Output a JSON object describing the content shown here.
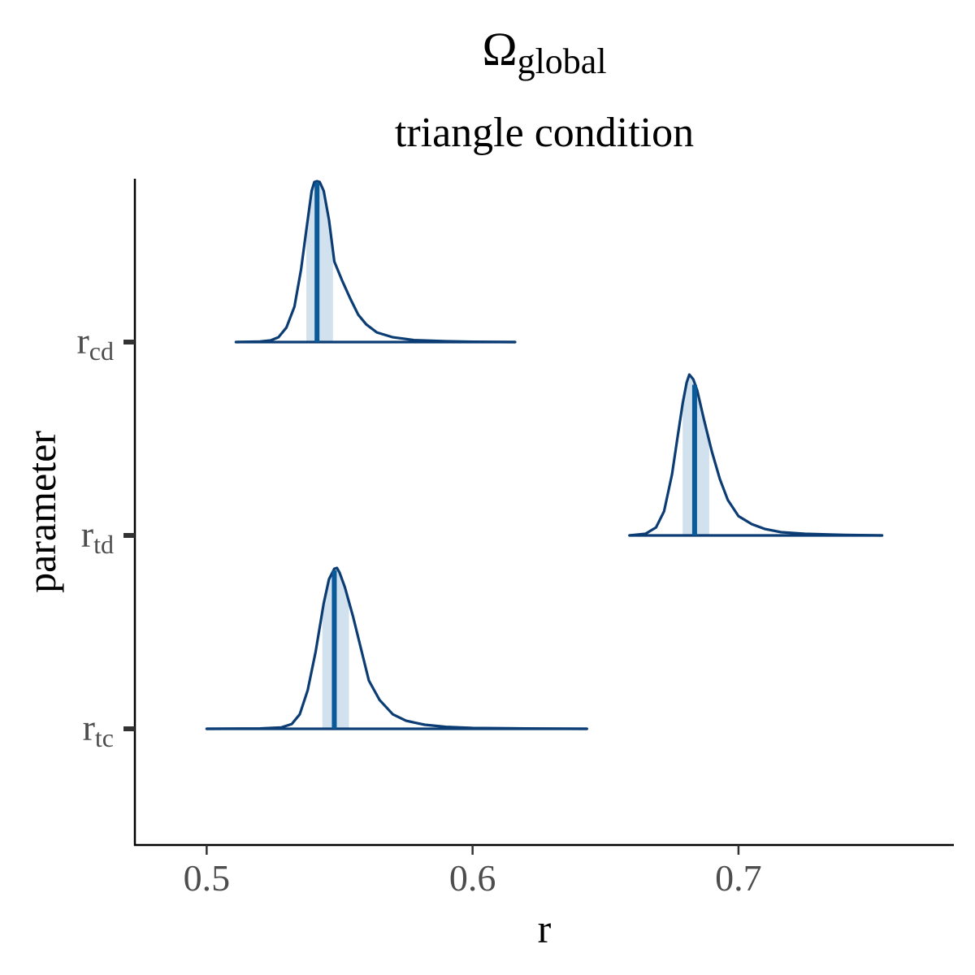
{
  "chart_data": {
    "type": "area",
    "title_main": "Ω",
    "title_sub": "global",
    "subtitle": "triangle condition",
    "xlabel": "r",
    "ylabel": "parameter",
    "xlim": [
      0.473,
      0.781
    ],
    "xticks": [
      0.5,
      0.6,
      0.7
    ],
    "xtick_labels": [
      "0.5",
      "0.6",
      "0.7"
    ],
    "grid": false,
    "line_color": "#0b3c73",
    "median_color": "#0a5a99",
    "interval_fill": "#d2e1ee",
    "series": [
      {
        "base": "r",
        "sub": "cd",
        "range": [
          0.511,
          0.616
        ],
        "median": 0.5415,
        "interval": [
          0.5375,
          0.5475
        ],
        "density": [
          [
            0.511,
            0
          ],
          [
            0.52,
            0.003
          ],
          [
            0.524,
            0.01
          ],
          [
            0.527,
            0.03
          ],
          [
            0.53,
            0.09
          ],
          [
            0.533,
            0.22
          ],
          [
            0.5355,
            0.45
          ],
          [
            0.5375,
            0.7
          ],
          [
            0.5395,
            0.94
          ],
          [
            0.5405,
            0.995
          ],
          [
            0.5415,
            1.0
          ],
          [
            0.5425,
            0.995
          ],
          [
            0.544,
            0.94
          ],
          [
            0.546,
            0.76
          ],
          [
            0.548,
            0.5
          ],
          [
            0.551,
            0.38
          ],
          [
            0.554,
            0.27
          ],
          [
            0.557,
            0.17
          ],
          [
            0.56,
            0.11
          ],
          [
            0.564,
            0.06
          ],
          [
            0.57,
            0.03
          ],
          [
            0.578,
            0.012
          ],
          [
            0.59,
            0.005
          ],
          [
            0.6,
            0.002
          ],
          [
            0.616,
            0
          ]
        ]
      },
      {
        "base": "r",
        "sub": "td",
        "range": [
          0.659,
          0.754
        ],
        "median": 0.6835,
        "interval": [
          0.679,
          0.689
        ],
        "density": [
          [
            0.659,
            0
          ],
          [
            0.665,
            0.01
          ],
          [
            0.669,
            0.05
          ],
          [
            0.672,
            0.15
          ],
          [
            0.675,
            0.38
          ],
          [
            0.677,
            0.6
          ],
          [
            0.679,
            0.82
          ],
          [
            0.6805,
            0.95
          ],
          [
            0.6815,
            1.0
          ],
          [
            0.683,
            0.97
          ],
          [
            0.6845,
            0.9
          ],
          [
            0.687,
            0.72
          ],
          [
            0.69,
            0.52
          ],
          [
            0.693,
            0.35
          ],
          [
            0.696,
            0.22
          ],
          [
            0.7,
            0.12
          ],
          [
            0.705,
            0.07
          ],
          [
            0.71,
            0.04
          ],
          [
            0.716,
            0.02
          ],
          [
            0.725,
            0.01
          ],
          [
            0.74,
            0.003
          ],
          [
            0.754,
            0
          ]
        ]
      },
      {
        "base": "r",
        "sub": "tc",
        "range": [
          0.5,
          0.643
        ],
        "median": 0.548,
        "interval": [
          0.5435,
          0.5535
        ],
        "density": [
          [
            0.5,
            0
          ],
          [
            0.52,
            0.002
          ],
          [
            0.528,
            0.008
          ],
          [
            0.532,
            0.03
          ],
          [
            0.535,
            0.09
          ],
          [
            0.538,
            0.24
          ],
          [
            0.541,
            0.48
          ],
          [
            0.544,
            0.78
          ],
          [
            0.546,
            0.93
          ],
          [
            0.548,
            0.995
          ],
          [
            0.549,
            1.0
          ],
          [
            0.55,
            0.97
          ],
          [
            0.552,
            0.88
          ],
          [
            0.555,
            0.7
          ],
          [
            0.558,
            0.5
          ],
          [
            0.561,
            0.3
          ],
          [
            0.565,
            0.18
          ],
          [
            0.57,
            0.09
          ],
          [
            0.575,
            0.05
          ],
          [
            0.582,
            0.025
          ],
          [
            0.59,
            0.012
          ],
          [
            0.6,
            0.005
          ],
          [
            0.62,
            0.002
          ],
          [
            0.643,
            0
          ]
        ]
      }
    ]
  }
}
